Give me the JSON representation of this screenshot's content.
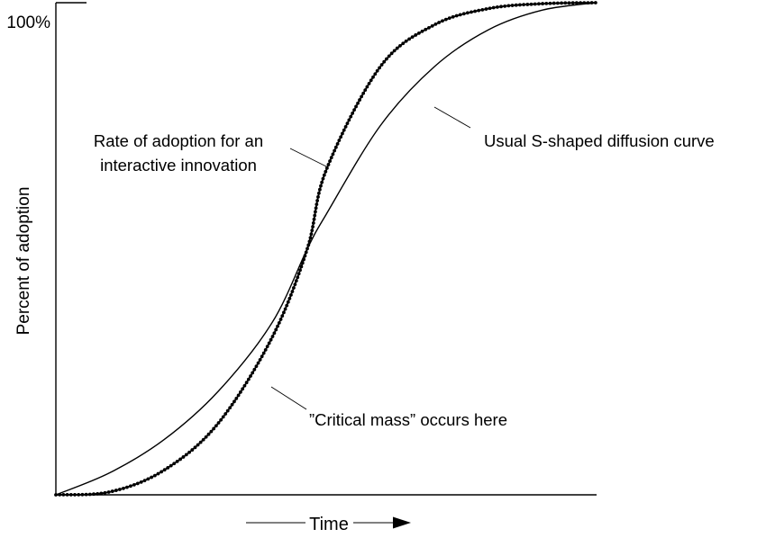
{
  "chart_data": {
    "type": "line",
    "title": "",
    "xlabel": "Time",
    "ylabel": "Percent of adoption",
    "y_tick_labels": [
      "100%"
    ],
    "ylim": [
      0,
      100
    ],
    "xlim": [
      0,
      100
    ],
    "grid": false,
    "legend": "none",
    "series": [
      {
        "style": "solid",
        "color": "#000000",
        "x": [
          0,
          10,
          20,
          30,
          40,
          46.5,
          50,
          60,
          70,
          80,
          90,
          100
        ],
        "y": [
          0,
          4.5,
          11.2,
          21,
          35,
          50,
          57,
          75,
          87,
          94.5,
          98.5,
          100
        ]
      },
      {
        "style": "dotted",
        "color": "#000000",
        "x": [
          0,
          10,
          20,
          30,
          40,
          46.5,
          50,
          60,
          70,
          80,
          90,
          100
        ],
        "y": [
          0,
          0.6,
          5,
          14.5,
          32,
          50,
          66,
          87,
          95.5,
          98.8,
          99.8,
          100
        ]
      }
    ],
    "annotations": [
      {
        "name": "usual-curve",
        "text": [
          "Usual S-shaped diffusion curve"
        ]
      },
      {
        "name": "interactive-curve",
        "text": [
          "Rate of adoption for an",
          "interactive innovation"
        ]
      },
      {
        "name": "critical-mass",
        "text": [
          "”Critical mass” occurs here"
        ]
      }
    ]
  }
}
